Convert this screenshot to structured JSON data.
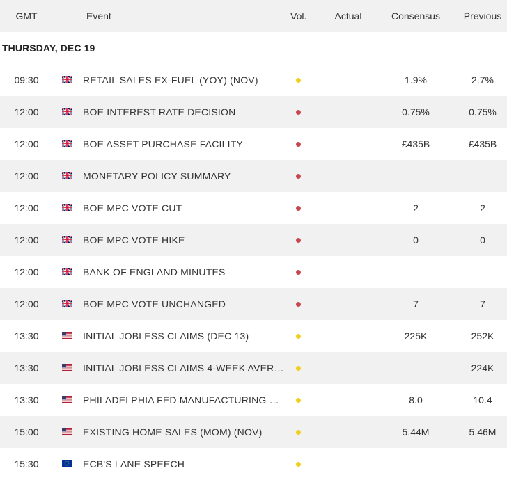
{
  "header": {
    "gmt": "GMT",
    "event": "Event",
    "vol": "Vol.",
    "actual": "Actual",
    "consensus": "Consensus",
    "previous": "Previous"
  },
  "date_label": "THURSDAY, DEC 19",
  "colors": {
    "volatility_high": "#c8474f",
    "volatility_medium": "#f2cf1a",
    "row_alt_bg": "#f1f1f1"
  },
  "rows": [
    {
      "time": "09:30",
      "country": "gb-flag-icon",
      "event": "RETAIL SALES EX-FUEL (YOY) (NOV)",
      "volatility": "medium",
      "actual": "",
      "consensus": "1.9%",
      "previous": "2.7%"
    },
    {
      "time": "12:00",
      "country": "gb-flag-icon",
      "event": "BOE INTEREST RATE DECISION",
      "volatility": "high",
      "actual": "",
      "consensus": "0.75%",
      "previous": "0.75%"
    },
    {
      "time": "12:00",
      "country": "gb-flag-icon",
      "event": "BOE ASSET PURCHASE FACILITY",
      "volatility": "high",
      "actual": "",
      "consensus": "£435B",
      "previous": "£435B"
    },
    {
      "time": "12:00",
      "country": "gb-flag-icon",
      "event": "MONETARY POLICY SUMMARY",
      "volatility": "high",
      "actual": "",
      "consensus": "",
      "previous": ""
    },
    {
      "time": "12:00",
      "country": "gb-flag-icon",
      "event": "BOE MPC VOTE CUT",
      "volatility": "high",
      "actual": "",
      "consensus": "2",
      "previous": "2"
    },
    {
      "time": "12:00",
      "country": "gb-flag-icon",
      "event": "BOE MPC VOTE HIKE",
      "volatility": "high",
      "actual": "",
      "consensus": "0",
      "previous": "0"
    },
    {
      "time": "12:00",
      "country": "gb-flag-icon",
      "event": "BANK OF ENGLAND MINUTES",
      "volatility": "high",
      "actual": "",
      "consensus": "",
      "previous": ""
    },
    {
      "time": "12:00",
      "country": "gb-flag-icon",
      "event": "BOE MPC VOTE UNCHANGED",
      "volatility": "high",
      "actual": "",
      "consensus": "7",
      "previous": "7"
    },
    {
      "time": "13:30",
      "country": "us-flag-icon",
      "event": "INITIAL JOBLESS CLAIMS (DEC 13)",
      "volatility": "medium",
      "actual": "",
      "consensus": "225K",
      "previous": "252K"
    },
    {
      "time": "13:30",
      "country": "us-flag-icon",
      "event": "INITIAL JOBLESS CLAIMS 4-WEEK AVERA...",
      "volatility": "medium",
      "actual": "",
      "consensus": "",
      "previous": "224K"
    },
    {
      "time": "13:30",
      "country": "us-flag-icon",
      "event": "PHILADELPHIA FED MANUFACTURING SU...",
      "volatility": "medium",
      "actual": "",
      "consensus": "8.0",
      "previous": "10.4"
    },
    {
      "time": "15:00",
      "country": "us-flag-icon",
      "event": "EXISTING HOME SALES (MOM) (NOV)",
      "volatility": "medium",
      "actual": "",
      "consensus": "5.44M",
      "previous": "5.46M"
    },
    {
      "time": "15:30",
      "country": "eu-flag-icon",
      "event": "ECB'S LANE SPEECH",
      "volatility": "medium",
      "actual": "",
      "consensus": "",
      "previous": ""
    }
  ]
}
